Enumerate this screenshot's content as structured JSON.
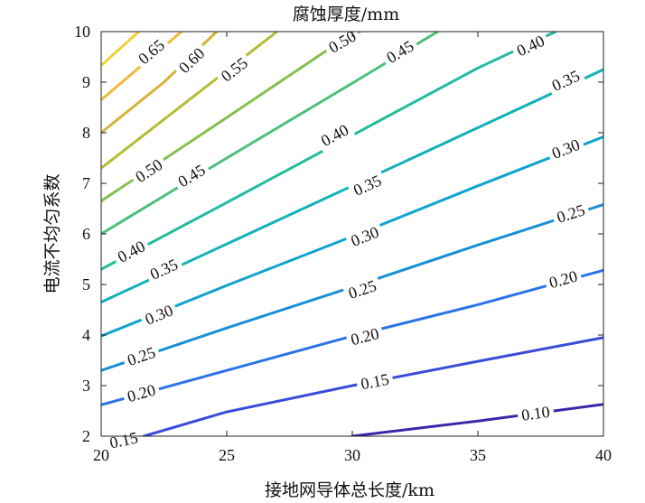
{
  "chart_data": {
    "type": "contour",
    "title": "腐蚀厚度/mm",
    "xlabel": "接地网导体总长度/km",
    "ylabel": "电流不均匀系数",
    "xlim": [
      20,
      40
    ],
    "ylim": [
      2,
      10
    ],
    "xticks": [
      "20",
      "25",
      "30",
      "35",
      "40"
    ],
    "yticks": [
      "2",
      "3",
      "4",
      "5",
      "6",
      "7",
      "8",
      "9",
      "10"
    ],
    "grid": false,
    "colormap": "parula",
    "levels": [
      {
        "level": "0.10",
        "color": "#3e26a8",
        "points": [
          [
            30,
            2.0
          ],
          [
            35,
            2.3
          ],
          [
            40,
            2.63
          ]
        ],
        "labels": [
          [
            37.3,
            2.45
          ]
        ]
      },
      {
        "level": "0.15",
        "color": "#3b4bd9",
        "points": [
          [
            21.7,
            2.0
          ],
          [
            25,
            2.48
          ],
          [
            30,
            3.0
          ],
          [
            35,
            3.48
          ],
          [
            40,
            3.95
          ]
        ],
        "labels": [
          [
            20.9,
            1.92
          ],
          [
            30.9,
            3.08
          ]
        ]
      },
      {
        "level": "0.20",
        "color": "#2c73e8",
        "points": [
          [
            20,
            2.62
          ],
          [
            25,
            3.3
          ],
          [
            30,
            3.98
          ],
          [
            35,
            4.6
          ],
          [
            40,
            5.28
          ]
        ],
        "labels": [
          [
            21.6,
            2.85
          ],
          [
            30.5,
            3.97
          ],
          [
            38.4,
            5.1
          ]
        ]
      },
      {
        "level": "0.25",
        "color": "#1a8fd8",
        "points": [
          [
            20,
            3.3
          ],
          [
            25,
            4.14
          ],
          [
            30,
            4.95
          ],
          [
            35,
            5.78
          ],
          [
            40,
            6.58
          ]
        ],
        "labels": [
          [
            21.6,
            3.58
          ],
          [
            30.4,
            4.9
          ],
          [
            38.7,
            6.4
          ]
        ]
      },
      {
        "level": "0.30",
        "color": "#0fa3cf",
        "points": [
          [
            20,
            3.98
          ],
          [
            25,
            4.98
          ],
          [
            30,
            5.95
          ],
          [
            35,
            6.95
          ],
          [
            40,
            7.92
          ]
        ],
        "labels": [
          [
            22.3,
            4.4
          ],
          [
            30.5,
            5.95
          ],
          [
            38.5,
            7.68
          ]
        ]
      },
      {
        "level": "0.35",
        "color": "#10b2b8",
        "points": [
          [
            20,
            4.65
          ],
          [
            25,
            5.8
          ],
          [
            30,
            6.95
          ],
          [
            35,
            8.1
          ],
          [
            40,
            9.25
          ]
        ],
        "labels": [
          [
            22.5,
            5.3
          ],
          [
            30.6,
            6.96
          ],
          [
            38.5,
            9.03
          ]
        ]
      },
      {
        "level": "0.40",
        "color": "#22bb9e",
        "points": [
          [
            20,
            5.3
          ],
          [
            25,
            6.62
          ],
          [
            30,
            7.95
          ],
          [
            35,
            9.28
          ],
          [
            38.1,
            10.0
          ]
        ],
        "labels": [
          [
            21.2,
            5.65
          ],
          [
            29.3,
            7.95
          ],
          [
            37.1,
            9.72
          ]
        ]
      },
      {
        "level": "0.45",
        "color": "#4dc07c",
        "points": [
          [
            20,
            6.0
          ],
          [
            25,
            7.5
          ],
          [
            30,
            8.98
          ],
          [
            33.4,
            10.0
          ]
        ],
        "labels": [
          [
            23.6,
            7.15
          ],
          [
            31.9,
            9.6
          ]
        ]
      },
      {
        "level": "0.50",
        "color": "#85c04f",
        "points": [
          [
            20,
            6.65
          ],
          [
            25,
            8.3
          ],
          [
            28.9,
            9.6
          ],
          [
            30.3,
            10.0
          ]
        ],
        "labels": [
          [
            21.9,
            7.25
          ],
          [
            29.6,
            9.8
          ]
        ]
      },
      {
        "level": "0.55",
        "color": "#b6bd34",
        "points": [
          [
            20,
            7.3
          ],
          [
            24.8,
            9.15
          ],
          [
            27.0,
            10.0
          ]
        ],
        "labels": [
          [
            25.3,
            9.25
          ]
        ]
      },
      {
        "level": "0.60",
        "color": "#d6b33a",
        "points": [
          [
            20,
            8.0
          ],
          [
            22.5,
            9.0
          ],
          [
            24.6,
            10.0
          ]
        ],
        "labels": [
          [
            23.6,
            9.43
          ]
        ]
      },
      {
        "level": "0.65",
        "color": "#f4b93a",
        "points": [
          [
            20,
            8.65
          ],
          [
            23.2,
            10.0
          ]
        ],
        "labels": [
          [
            22.0,
            9.6
          ]
        ]
      },
      {
        "level": "",
        "color": "#f0d233",
        "points": [
          [
            20,
            9.33
          ],
          [
            21.5,
            10.0
          ]
        ],
        "labels": []
      }
    ]
  }
}
